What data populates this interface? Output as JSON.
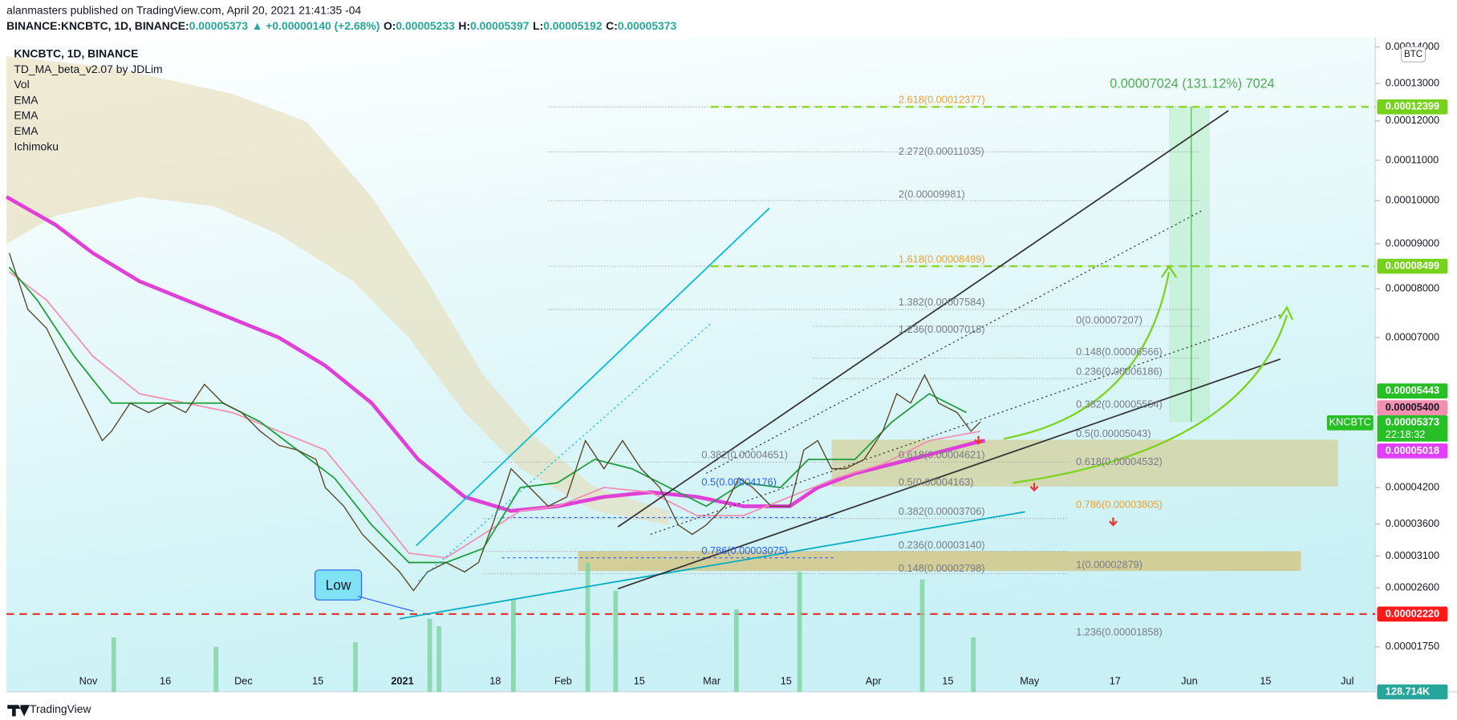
{
  "header": {
    "publisher": "alanmasters published on TradingView.com, April 20, 2021 21:41:35 -04",
    "quote": [
      {
        "text": "BINANCE:KNCBTC, 1D, BINANCE:",
        "color": "#131722"
      },
      {
        "text": "0.00005373",
        "color": "#26a69a"
      },
      {
        "text": "▲ +0.00000140 (+2.68%)",
        "color": "#26a69a"
      },
      {
        "text": "O:",
        "color": "#131722"
      },
      {
        "text": "0.00005233",
        "color": "#26a69a"
      },
      {
        "text": "H:",
        "color": "#131722"
      },
      {
        "text": "0.00005397",
        "color": "#26a69a"
      },
      {
        "text": "L:",
        "color": "#131722"
      },
      {
        "text": "0.00005192",
        "color": "#26a69a"
      },
      {
        "text": "C:",
        "color": "#131722"
      },
      {
        "text": "0.00005373",
        "color": "#26a69a"
      }
    ]
  },
  "legend": [
    "KNCBTC, 1D, BINANCE",
    "TD_MA_beta_v2.07 by JDLim",
    "Vol",
    "EMA",
    "EMA",
    "EMA",
    "Ichimoku"
  ],
  "price_axis": {
    "unit": "BTC",
    "ticks": [
      "0.00014000",
      "0.00013000",
      "0.00012000",
      "0.00011000",
      "0.00010000",
      "0.00009000",
      "0.00008000",
      "0.00007000",
      "0.00004200",
      "0.00003600",
      "0.00003100",
      "0.00002600",
      "0.00001750"
    ],
    "tags": [
      {
        "label": "0.00012399",
        "color": "#76d21c"
      },
      {
        "label": "0.00008499",
        "color": "#76d21c"
      },
      {
        "label": "0.00005443",
        "color": "#26c026"
      },
      {
        "label": "0.00005400",
        "color": "#f48fb1"
      },
      {
        "label": "0.00005373",
        "color": "#26c026"
      },
      {
        "label": "0.00005018",
        "color": "#e040fb"
      },
      {
        "label": "0.00002220",
        "color": "#ff1a1a"
      },
      {
        "label": "128.714K",
        "color": "#26a69a"
      }
    ],
    "symbol_tag": "KNCBTC",
    "countdown": "22:18:32"
  },
  "time_axis": [
    "Nov",
    "16",
    "Dec",
    "15",
    "2021",
    "18",
    "Feb",
    "15",
    "Mar",
    "15",
    "Apr",
    "15",
    "May",
    "17",
    "Jun",
    "15",
    "Jul"
  ],
  "annotations": {
    "measure": "0.00007024 (131.12%) 7024",
    "low": "Low",
    "fib_levels": [
      {
        "text": "2.618(0.00012377)",
        "color": "#f0a030"
      },
      {
        "text": "2.272(0.00011035)",
        "color": "#787b86"
      },
      {
        "text": "2(0.00009981)",
        "color": "#787b86"
      },
      {
        "text": "1.618(0.00008499)",
        "color": "#f0a030"
      },
      {
        "text": "1.382(0.00007584)",
        "color": "#787b86"
      },
      {
        "text": "1.236(0.00007018)",
        "color": "#787b86"
      },
      {
        "text": "0(0.00007207)",
        "color": "#787b86"
      },
      {
        "text": "0.148(0.00006566)",
        "color": "#787b86"
      },
      {
        "text": "0.236(0.00006186)",
        "color": "#787b86"
      },
      {
        "text": "0.382(0.00005554)",
        "color": "#787b86"
      },
      {
        "text": "0.5(0.00005043)",
        "color": "#787b86"
      },
      {
        "text": "0.618(0.00004532)",
        "color": "#787b86"
      },
      {
        "text": "0.786(0.00003805)",
        "color": "#f0a030"
      },
      {
        "text": "1(0.00002879)",
        "color": "#787b86"
      },
      {
        "text": "1.236(0.00001858)",
        "color": "#787b86"
      },
      {
        "text": "0.382(0.00003706)",
        "color": "#787b86"
      },
      {
        "text": "0.236(0.00003140)",
        "color": "#787b86"
      },
      {
        "text": "0.148(0.00002798)",
        "color": "#787b86"
      },
      {
        "text": "0.5(0.00004163)",
        "color": "#787b86"
      },
      {
        "text": "0.618(0.00004621)",
        "color": "#787b86"
      },
      {
        "text": "0.382(0.00004651)",
        "color": "#787b86"
      },
      {
        "text": "0.5(0.00004176)",
        "color": "#2962ff"
      },
      {
        "text": "0.786(0.00003075)",
        "color": "#2962ff"
      }
    ]
  },
  "footer": "TradingView"
}
